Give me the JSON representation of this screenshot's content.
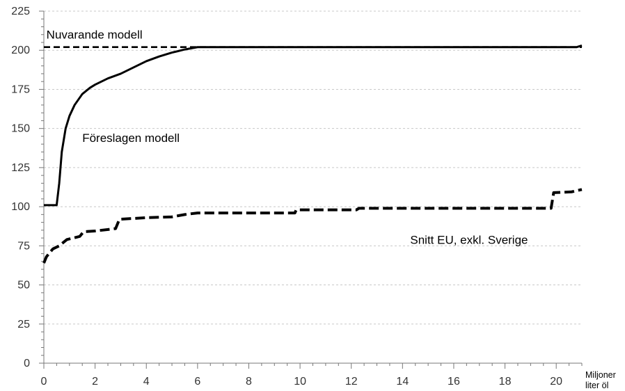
{
  "chart_data": {
    "type": "line",
    "title": "",
    "xlabel": "",
    "ylabel": "",
    "x_unit_lines": [
      "Miljoner",
      "liter öl"
    ],
    "xlim": [
      0,
      21
    ],
    "ylim": [
      0,
      225
    ],
    "x_ticks": [
      0,
      2,
      4,
      6,
      8,
      10,
      12,
      14,
      16,
      18,
      20
    ],
    "y_ticks": [
      0,
      25,
      50,
      75,
      100,
      125,
      150,
      175,
      200,
      225
    ],
    "x_minor_step": 0.5,
    "y_minor_step": 5,
    "grid": "horizontal-dotted",
    "legend": "none",
    "series": [
      {
        "name": "Nuvarande modell",
        "style": "dashed",
        "points": [
          [
            0,
            202
          ],
          [
            21,
            202
          ]
        ]
      },
      {
        "name": "Föreslagen modell",
        "style": "solid",
        "points": [
          [
            0,
            101
          ],
          [
            0.5,
            101
          ],
          [
            0.6,
            115
          ],
          [
            0.7,
            135
          ],
          [
            0.85,
            150
          ],
          [
            1.0,
            158
          ],
          [
            1.2,
            165
          ],
          [
            1.5,
            172
          ],
          [
            1.8,
            176
          ],
          [
            2.0,
            178
          ],
          [
            2.5,
            182
          ],
          [
            3.0,
            185
          ],
          [
            3.5,
            189
          ],
          [
            4.0,
            193
          ],
          [
            4.5,
            196
          ],
          [
            5.0,
            198.5
          ],
          [
            5.5,
            200.5
          ],
          [
            6.0,
            202
          ],
          [
            20.8,
            202
          ],
          [
            21,
            203
          ]
        ]
      },
      {
        "name": "Snitt EU, exkl. Sverige",
        "style": "dashed-thick",
        "points": [
          [
            0,
            64
          ],
          [
            0.1,
            68
          ],
          [
            0.2,
            70
          ],
          [
            0.35,
            73
          ],
          [
            0.6,
            75
          ],
          [
            0.9,
            79
          ],
          [
            1.4,
            81
          ],
          [
            1.55,
            84
          ],
          [
            2.0,
            84.5
          ],
          [
            2.8,
            86
          ],
          [
            2.95,
            92
          ],
          [
            3.5,
            92.5
          ],
          [
            4.0,
            93
          ],
          [
            5.0,
            93.5
          ],
          [
            5.5,
            95
          ],
          [
            6.0,
            96
          ],
          [
            9.8,
            96
          ],
          [
            9.85,
            98
          ],
          [
            12.2,
            98
          ],
          [
            12.3,
            99
          ],
          [
            19.8,
            99
          ],
          [
            19.9,
            109
          ],
          [
            20.6,
            109.5
          ],
          [
            21,
            111
          ]
        ]
      }
    ],
    "annotations": [
      {
        "text": "Nuvarande modell",
        "x": 0.1,
        "y": 210
      },
      {
        "text": "Föreslagen modell",
        "x": 1.5,
        "y": 144
      },
      {
        "text": "Snitt EU, exkl. Sverige",
        "x": 14.3,
        "y": 79
      }
    ]
  }
}
